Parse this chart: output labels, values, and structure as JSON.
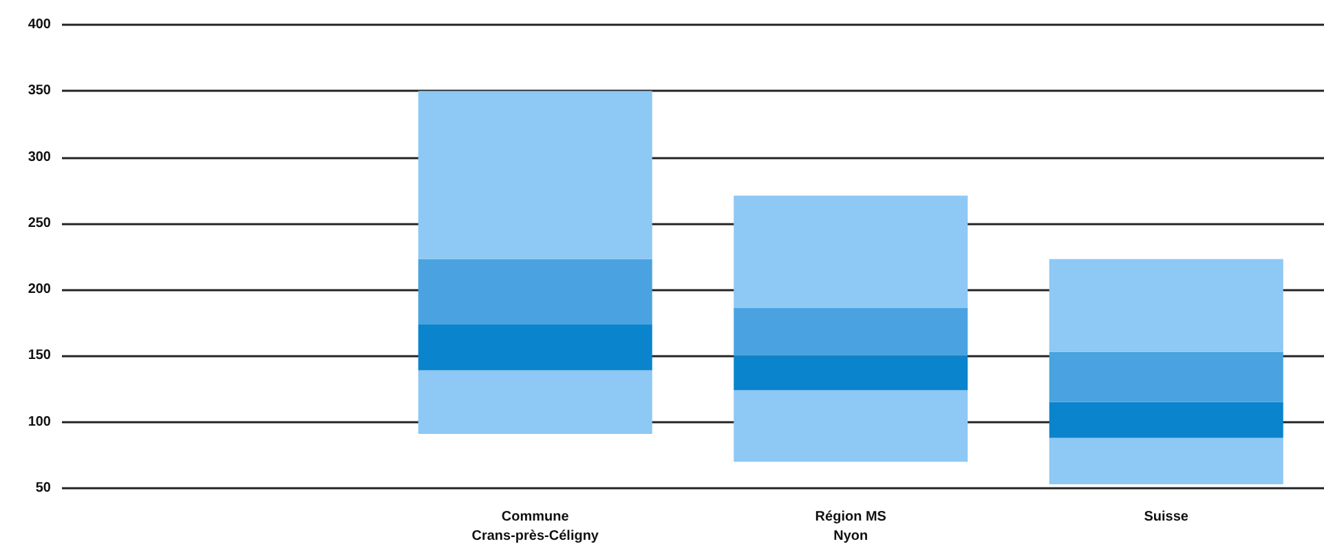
{
  "chart_data": {
    "type": "bar",
    "categories": [
      null,
      "Commune\nCrans-près-Céligny",
      "Région MS\nNyon",
      "Suisse"
    ],
    "series": [
      {
        "color": "#8ec8f4",
        "base": [
          null,
          91,
          70,
          53
        ],
        "values": [
          null,
          48,
          54,
          35
        ]
      },
      {
        "color": "#0a84cc",
        "base": [
          null,
          139,
          124,
          88
        ],
        "values": [
          null,
          35,
          26,
          27
        ]
      },
      {
        "color": "#4aa3e0",
        "base": [
          null,
          174,
          150,
          115
        ],
        "values": [
          null,
          49,
          36,
          38
        ]
      },
      {
        "color": "#8ec8f4",
        "base": [
          null,
          223,
          186,
          153
        ],
        "values": [
          null,
          127,
          85,
          70
        ]
      }
    ],
    "ylim": [
      50,
      400
    ],
    "yticks": [
      50,
      100,
      150,
      200,
      250,
      300,
      350,
      400
    ],
    "grid": "y"
  }
}
